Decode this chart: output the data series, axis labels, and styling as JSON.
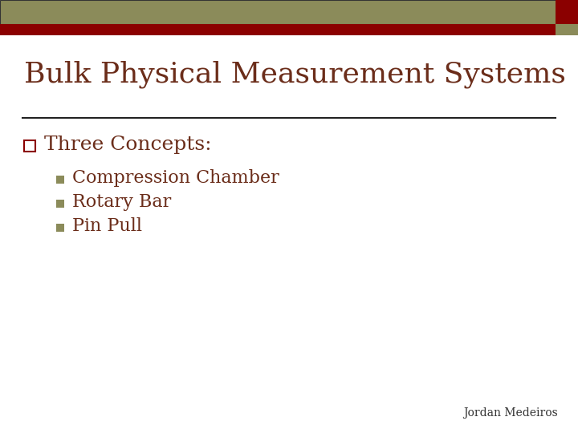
{
  "title": "Bulk Physical Measurement Systems",
  "title_color": "#6B2D1A",
  "title_fontsize": 26,
  "background_color": "#FFFFFF",
  "header_tan_color": "#8B8B5A",
  "header_red_color": "#8B0000",
  "bullet1_text": "Three Concepts:",
  "bullet1_color": "#6B2D1A",
  "bullet1_fontsize": 18,
  "bullet1_marker_color": "#8B0000",
  "sub_bullets": [
    "Compression Chamber",
    "Rotary Bar",
    "Pin Pull"
  ],
  "sub_bullet_color": "#6B2D1A",
  "sub_bullet_fontsize": 16,
  "sub_bullet_marker_color": "#8B8B5A",
  "footer_text": "Jordan Medeiros",
  "footer_color": "#333333",
  "footer_fontsize": 10
}
